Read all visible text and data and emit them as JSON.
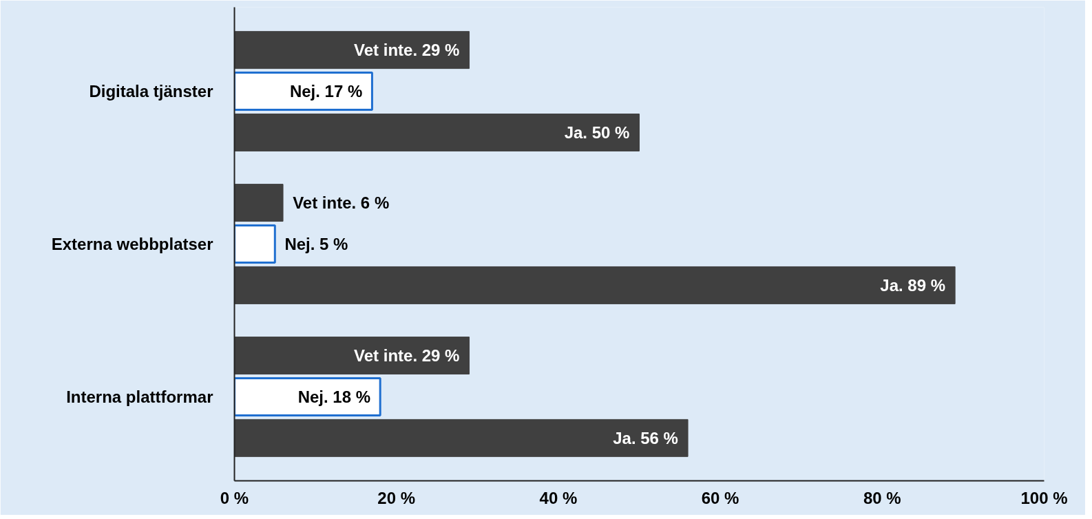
{
  "chart_data": {
    "type": "bar",
    "orientation": "horizontal",
    "categories": [
      "Digitala tjänster",
      "Externa webbplatser",
      "Interna plattformar"
    ],
    "series": [
      {
        "name": "Ja.",
        "color": "#404040",
        "values": [
          50,
          89,
          56
        ],
        "value_labels": [
          "50 %",
          "89 %",
          "56 %"
        ]
      },
      {
        "name": "Nej.",
        "color": "#ffffff",
        "values": [
          17,
          5,
          18
        ],
        "value_labels": [
          "17 %",
          "5 %",
          "18 %"
        ]
      },
      {
        "name": "Vet inte.",
        "color": "#404040",
        "values": [
          29,
          6,
          29
        ],
        "value_labels": [
          "29 %",
          "6 %",
          "29 %"
        ]
      }
    ],
    "xlim": [
      0,
      100
    ],
    "xticks": [
      {
        "value": 0,
        "label": "0 %"
      },
      {
        "value": 20,
        "label": "20 %"
      },
      {
        "value": 40,
        "label": "40 %"
      },
      {
        "value": 60,
        "label": "60 %"
      },
      {
        "value": 80,
        "label": "80 %"
      },
      {
        "value": 100,
        "label": "100 %"
      }
    ],
    "grid": false
  }
}
